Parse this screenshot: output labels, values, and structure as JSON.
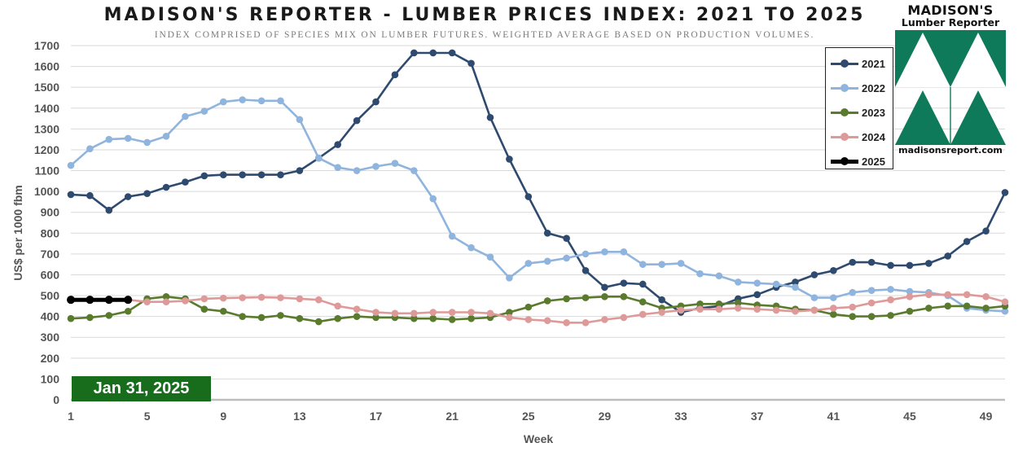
{
  "header": {
    "title": "MADISON'S REPORTER - LUMBER PRICES INDEX: 2021 TO 2025",
    "subtitle": "INDEX COMPRISED OF SPECIES MIX ON LUMBER FUTURES. WEIGHTED AVERAGE BASED ON PRODUCTION VOLUMES."
  },
  "logo": {
    "title": "MADISON'S",
    "subtitle": "Lumber Reporter",
    "url": "madisonsreport.com",
    "color": "#0e7a5a"
  },
  "date_badge": "Jan 31, 2025",
  "chart_data": {
    "type": "line",
    "xlabel": "Week",
    "ylabel": "US$ per 1000 fbm",
    "xlim": [
      1,
      50
    ],
    "ylim": [
      0,
      1700
    ],
    "x_ticks": [
      1,
      5,
      9,
      13,
      17,
      21,
      25,
      29,
      33,
      37,
      41,
      45,
      49
    ],
    "y_ticks": [
      0,
      100,
      200,
      300,
      400,
      500,
      600,
      700,
      800,
      900,
      1000,
      1100,
      1200,
      1300,
      1400,
      1500,
      1600,
      1700
    ],
    "grid": "horizontal",
    "legend_position": "top-right",
    "series": [
      {
        "name": "2021",
        "color": "#2e4a6f",
        "x": [
          1,
          2,
          3,
          4,
          5,
          6,
          7,
          8,
          9,
          10,
          11,
          12,
          13,
          14,
          15,
          16,
          17,
          18,
          19,
          20,
          21,
          22,
          23,
          24,
          25,
          26,
          27,
          28,
          29,
          30,
          31,
          32,
          33,
          34,
          35,
          36,
          37,
          38,
          39,
          40,
          41,
          42,
          43,
          44,
          45,
          46,
          47,
          48,
          49,
          50
        ],
        "values": [
          985,
          980,
          910,
          975,
          990,
          1020,
          1045,
          1075,
          1080,
          1080,
          1080,
          1080,
          1100,
          1160,
          1225,
          1340,
          1430,
          1560,
          1665,
          1665,
          1665,
          1615,
          1355,
          1155,
          975,
          800,
          775,
          620,
          540,
          560,
          555,
          480,
          420,
          440,
          450,
          485,
          505,
          540,
          565,
          600,
          620,
          660,
          660,
          645,
          645,
          655,
          690,
          760,
          810,
          995
        ]
      },
      {
        "name": "2022",
        "color": "#8fb4dd",
        "x": [
          1,
          2,
          3,
          4,
          5,
          6,
          7,
          8,
          9,
          10,
          11,
          12,
          13,
          14,
          15,
          16,
          17,
          18,
          19,
          20,
          21,
          22,
          23,
          24,
          25,
          26,
          27,
          28,
          29,
          30,
          31,
          32,
          33,
          34,
          35,
          36,
          37,
          38,
          39,
          40,
          41,
          42,
          43,
          44,
          45,
          46,
          47,
          48,
          49,
          50
        ],
        "values": [
          1125,
          1205,
          1250,
          1255,
          1235,
          1265,
          1360,
          1385,
          1430,
          1440,
          1435,
          1435,
          1345,
          1160,
          1115,
          1100,
          1120,
          1135,
          1100,
          965,
          785,
          730,
          685,
          585,
          655,
          665,
          680,
          700,
          710,
          710,
          650,
          650,
          655,
          605,
          595,
          565,
          560,
          555,
          540,
          490,
          490,
          515,
          525,
          530,
          520,
          515,
          500,
          440,
          430,
          425
        ]
      },
      {
        "name": "2023",
        "color": "#5a7a2e",
        "x": [
          1,
          2,
          3,
          4,
          5,
          6,
          7,
          8,
          9,
          10,
          11,
          12,
          13,
          14,
          15,
          16,
          17,
          18,
          19,
          20,
          21,
          22,
          23,
          24,
          25,
          26,
          27,
          28,
          29,
          30,
          31,
          32,
          33,
          34,
          35,
          36,
          37,
          38,
          39,
          40,
          41,
          42,
          43,
          44,
          45,
          46,
          47,
          48,
          49,
          50
        ],
        "values": [
          390,
          395,
          405,
          425,
          485,
          495,
          485,
          435,
          425,
          400,
          395,
          405,
          390,
          375,
          390,
          400,
          395,
          395,
          390,
          390,
          385,
          390,
          395,
          420,
          445,
          475,
          485,
          490,
          495,
          495,
          470,
          440,
          450,
          460,
          460,
          465,
          455,
          450,
          435,
          430,
          410,
          400,
          400,
          405,
          425,
          440,
          450,
          450,
          440,
          450
        ]
      },
      {
        "name": "2024",
        "color": "#de9a98",
        "x": [
          1,
          2,
          3,
          4,
          5,
          6,
          7,
          8,
          9,
          10,
          11,
          12,
          13,
          14,
          15,
          16,
          17,
          18,
          19,
          20,
          21,
          22,
          23,
          24,
          25,
          26,
          27,
          28,
          29,
          30,
          31,
          32,
          33,
          34,
          35,
          36,
          37,
          38,
          39,
          40,
          41,
          42,
          43,
          44,
          45,
          46,
          47,
          48,
          49,
          50
        ],
        "values": [
          480,
          480,
          480,
          480,
          470,
          470,
          475,
          485,
          488,
          490,
          492,
          490,
          485,
          480,
          450,
          435,
          420,
          415,
          415,
          420,
          420,
          420,
          415,
          395,
          385,
          380,
          370,
          370,
          385,
          395,
          410,
          420,
          430,
          435,
          435,
          440,
          435,
          430,
          425,
          430,
          440,
          445,
          465,
          480,
          495,
          505,
          505,
          505,
          495,
          470
        ]
      },
      {
        "name": "2025",
        "color": "#000000",
        "x": [
          1,
          2,
          3,
          4
        ],
        "values": [
          480,
          480,
          480,
          480
        ]
      }
    ]
  }
}
